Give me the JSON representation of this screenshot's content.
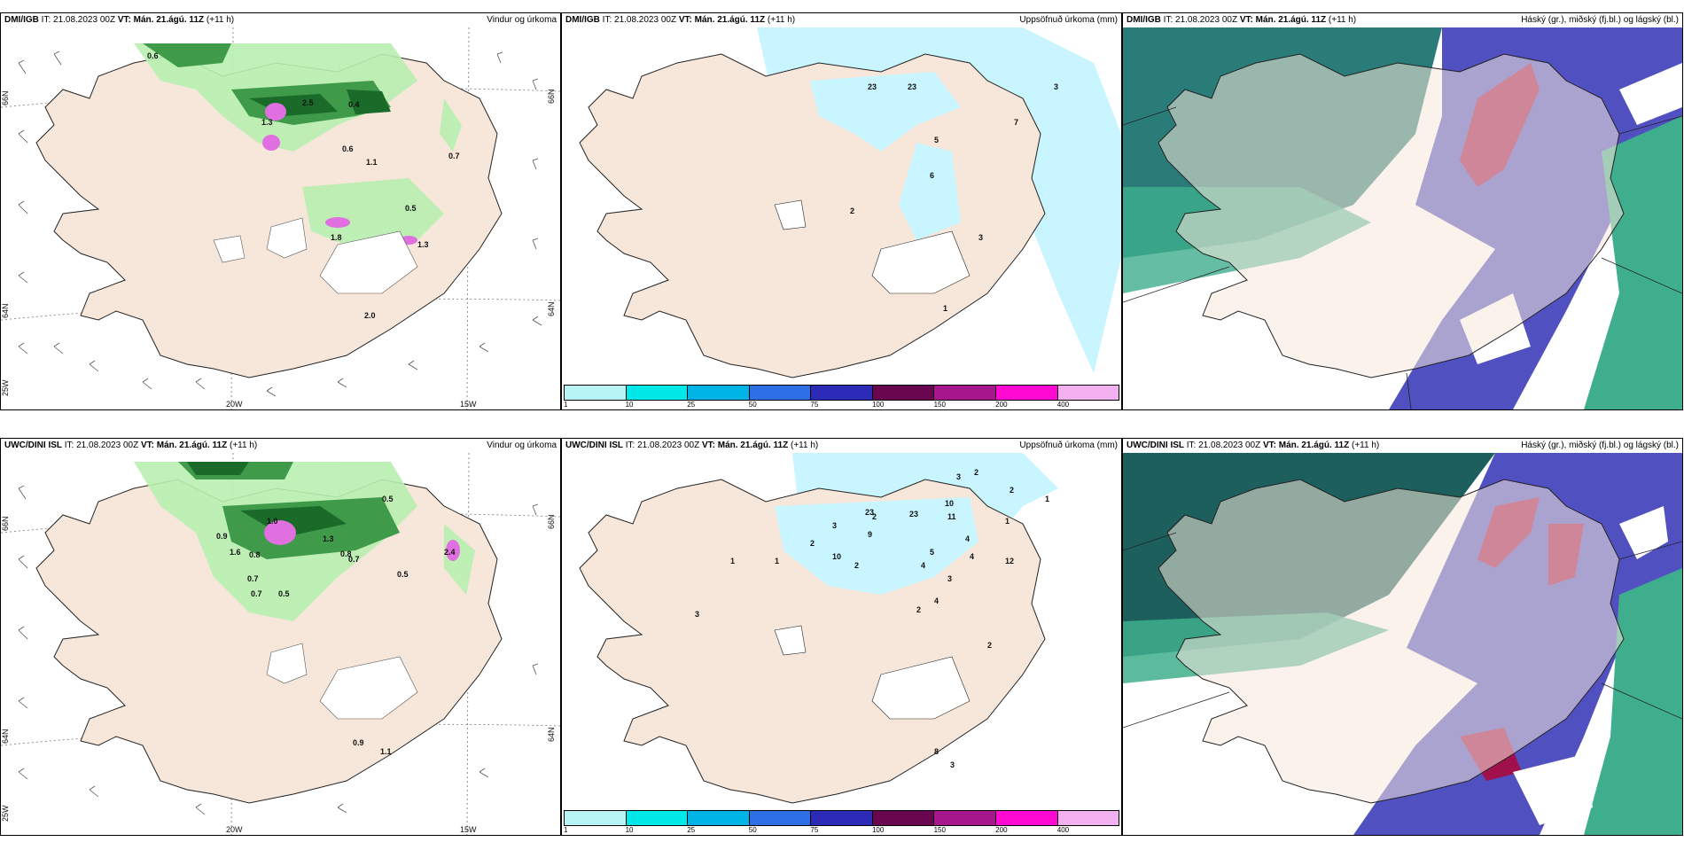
{
  "panels": [
    {
      "source": "DMI/IGB",
      "issue": "IT: 21.08.2023 00Z",
      "vt_label": "VT:",
      "valid": "Mán. 21.ágú. 11Z",
      "lead": "(+11 h)",
      "title": "Vindur og úrkoma"
    },
    {
      "source": "DMI/IGB",
      "issue": "IT: 21.08.2023 00Z",
      "vt_label": "VT:",
      "valid": "Mán. 21.ágú. 11Z",
      "lead": "(+11 h)",
      "title": "Uppsöfnuð úrkoma (mm)"
    },
    {
      "source": "DMI/IGB",
      "issue": "IT: 21.08.2023 00Z",
      "vt_label": "VT:",
      "valid": "Mán. 21.ágú. 11Z",
      "lead": "(+11 h)",
      "title": "Háský (gr.), miðský (fj.bl.) og lágský (bl.)"
    },
    {
      "source": "UWC/DINI ISL",
      "issue": "IT: 21.08.2023 00Z",
      "vt_label": "VT:",
      "valid": "Mán. 21.ágú. 11Z",
      "lead": "(+11 h)",
      "title": "Vindur og úrkoma"
    },
    {
      "source": "UWC/DINI ISL",
      "issue": "IT: 21.08.2023 00Z",
      "vt_label": "VT:",
      "valid": "Mán. 21.ágú. 11Z",
      "lead": "(+11 h)",
      "title": "Uppsöfnuð úrkoma (mm)"
    },
    {
      "source": "UWC/DINI ISL",
      "issue": "IT: 21.08.2023 00Z",
      "vt_label": "VT:",
      "valid": "Mán. 21.ágú. 11Z",
      "lead": "(+11 h)",
      "title": "Háský (gr.), miðský (fj.bl.) og lágský (bl.)"
    }
  ],
  "axes": {
    "lat_66": "66N",
    "lat_64": "64N",
    "lon_20": "20W",
    "lon_15": "15W",
    "lon_25": "25W"
  },
  "wind_top_values": [
    "0.6",
    "1.3",
    "2.5",
    "0.4",
    "0.6",
    "1.1",
    "0.7",
    "0.5",
    "1.8",
    "1.3",
    "2.0"
  ],
  "wind_bottom_values": [
    "0.9",
    "1.6",
    "0.8",
    "0.7",
    "0.5",
    "0.8",
    "0.7",
    "0.5",
    "0.7",
    "0.5",
    "2.4",
    "0.9",
    "1.1",
    "1.3",
    "1.0"
  ],
  "precip_top_values": [
    "23",
    "23",
    "3",
    "7",
    "5",
    "6",
    "2",
    "3",
    "1"
  ],
  "precip_bottom_values": [
    "3",
    "2",
    "2",
    "1",
    "2",
    "3",
    "10",
    "9",
    "23",
    "23",
    "10",
    "11",
    "4",
    "4",
    "12",
    "2",
    "1",
    "2",
    "5",
    "4",
    "3",
    "4",
    "3",
    "2",
    "2",
    "8",
    "3",
    "1",
    "1"
  ],
  "colorbar": {
    "ticks": [
      "1",
      "10",
      "25",
      "50",
      "75",
      "100",
      "150",
      "200",
      "400"
    ],
    "colors": [
      "#b8f4f4",
      "#00e8e8",
      "#00b4e6",
      "#2f6fe6",
      "#2b2bb8",
      "#6a0550",
      "#a8168c",
      "#ff0ad2",
      "#f3b0f0"
    ]
  },
  "colors": {
    "land": "#f6e7da",
    "precip_light": "#c8f5ff",
    "green_light": "#b8efb0",
    "green_dark": "#1a6a2a",
    "cloud_high": "#1c5f5c",
    "cloud_mid": "#5050c0",
    "cloud_red": "#a0104a"
  }
}
